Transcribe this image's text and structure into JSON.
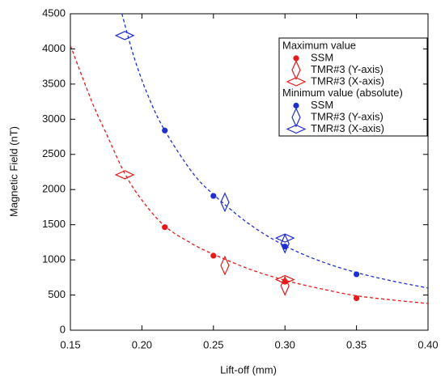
{
  "chart_data": {
    "type": "scatter",
    "xlabel": "Lift-off (mm)",
    "ylabel": "Magnetic Field (nT)",
    "xlim": [
      0.15,
      0.4
    ],
    "ylim": [
      0,
      4500
    ],
    "xticks": [
      0.15,
      {
        "value": 0.2,
        "label": "0.20"
      },
      0.25,
      {
        "value": 0.3,
        "label": "0.30"
      },
      0.35,
      {
        "value": 0.4,
        "label": "0.40"
      }
    ],
    "yticks": [
      0,
      500,
      1000,
      1500,
      2000,
      2500,
      3000,
      3500,
      4000,
      4500
    ],
    "legend_position": "upper right",
    "groups": [
      {
        "name": "Maximum value",
        "color": "#e41a1c",
        "fit": {
          "x": [
            0.15,
            0.165,
            0.175,
            0.188,
            0.2,
            0.216,
            0.235,
            0.25,
            0.275,
            0.3,
            0.325,
            0.35,
            0.375,
            0.4
          ],
          "values": [
            4050,
            3250,
            2800,
            2230,
            1850,
            1480,
            1230,
            1080,
            870,
            710,
            590,
            490,
            430,
            380
          ]
        },
        "series": [
          {
            "name": "SSM",
            "marker": "circle",
            "x": [
              0.216,
              0.25,
              0.3,
              0.35
            ],
            "values": [
              1465,
              1060,
              690,
              455
            ]
          },
          {
            "name": "TMR#3 (Y-axis)",
            "marker": "diamond-tall",
            "x": [
              0.258,
              0.3
            ],
            "values": [
              920,
              630
            ]
          },
          {
            "name": "TMR#3 (X-axis)",
            "marker": "diamond-wide",
            "x": [
              0.188,
              0.3
            ],
            "values": [
              2210,
              720
            ]
          }
        ]
      },
      {
        "name": "Minimum value (absolute)",
        "color": "#1f2fd0",
        "fit": {
          "x": [
            0.186,
            0.195,
            0.205,
            0.216,
            0.235,
            0.25,
            0.275,
            0.3,
            0.325,
            0.35,
            0.375,
            0.4
          ],
          "values": [
            4500,
            3850,
            3300,
            2840,
            2250,
            1930,
            1510,
            1200,
            980,
            820,
            700,
            600
          ]
        },
        "series": [
          {
            "name": "SSM",
            "marker": "circle",
            "x": [
              0.216,
              0.25,
              0.3,
              0.35
            ],
            "values": [
              2840,
              1910,
              1190,
              795
            ]
          },
          {
            "name": "TMR#3 (Y-axis)",
            "marker": "diamond-tall",
            "x": [
              0.258,
              0.3
            ],
            "values": [
              1820,
              1230
            ]
          },
          {
            "name": "TMR#3 (X-axis)",
            "marker": "diamond-wide",
            "x": [
              0.188,
              0.3
            ],
            "values": [
              4190,
              1310
            ]
          }
        ]
      }
    ]
  }
}
